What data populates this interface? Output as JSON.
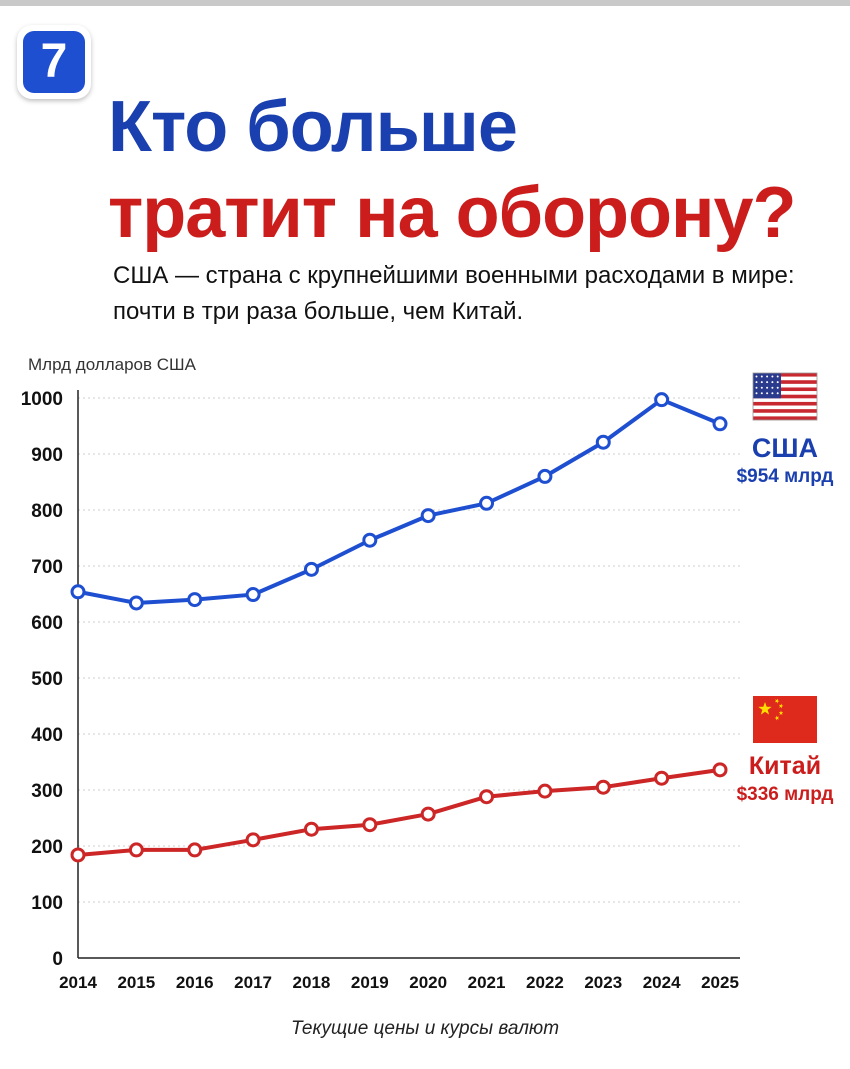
{
  "badge": {
    "number": "7"
  },
  "header": {
    "title_line1": "Кто больше",
    "title_line2": "тратит на оборону?",
    "subtitle_line1": "США — страна с крупнейшими военными расходами в мире:",
    "subtitle_line2": "почти в три раза больше, чем Китай."
  },
  "footnote": "Текущие цены и курсы валют",
  "chart_data": {
    "type": "line",
    "title": "",
    "xlabel": "",
    "ylabel": "Млрд долларов США",
    "x": [
      "2014",
      "2015",
      "2016",
      "2017",
      "2018",
      "2019",
      "2020",
      "2021",
      "2022",
      "2023",
      "2024",
      "2025"
    ],
    "ylim": [
      0,
      1000
    ],
    "yticks": [
      0,
      100,
      200,
      300,
      400,
      500,
      600,
      700,
      800,
      900,
      1000
    ],
    "grid": true,
    "series": [
      {
        "name": "США",
        "end_label": "$954 млрд",
        "color": "#1f4fd1",
        "label_color": "#1a3fae",
        "flag": "us-flag-icon",
        "values": [
          654,
          634,
          640,
          649,
          694,
          746,
          790,
          812,
          860,
          921,
          997,
          954
        ]
      },
      {
        "name": "Китай",
        "end_label": "$336 млрд",
        "color": "#cc2626",
        "label_color": "#cc1d1d",
        "flag": "china-flag-icon",
        "values": [
          184,
          193,
          193,
          211,
          230,
          238,
          257,
          288,
          298,
          305,
          321,
          336
        ]
      }
    ]
  }
}
